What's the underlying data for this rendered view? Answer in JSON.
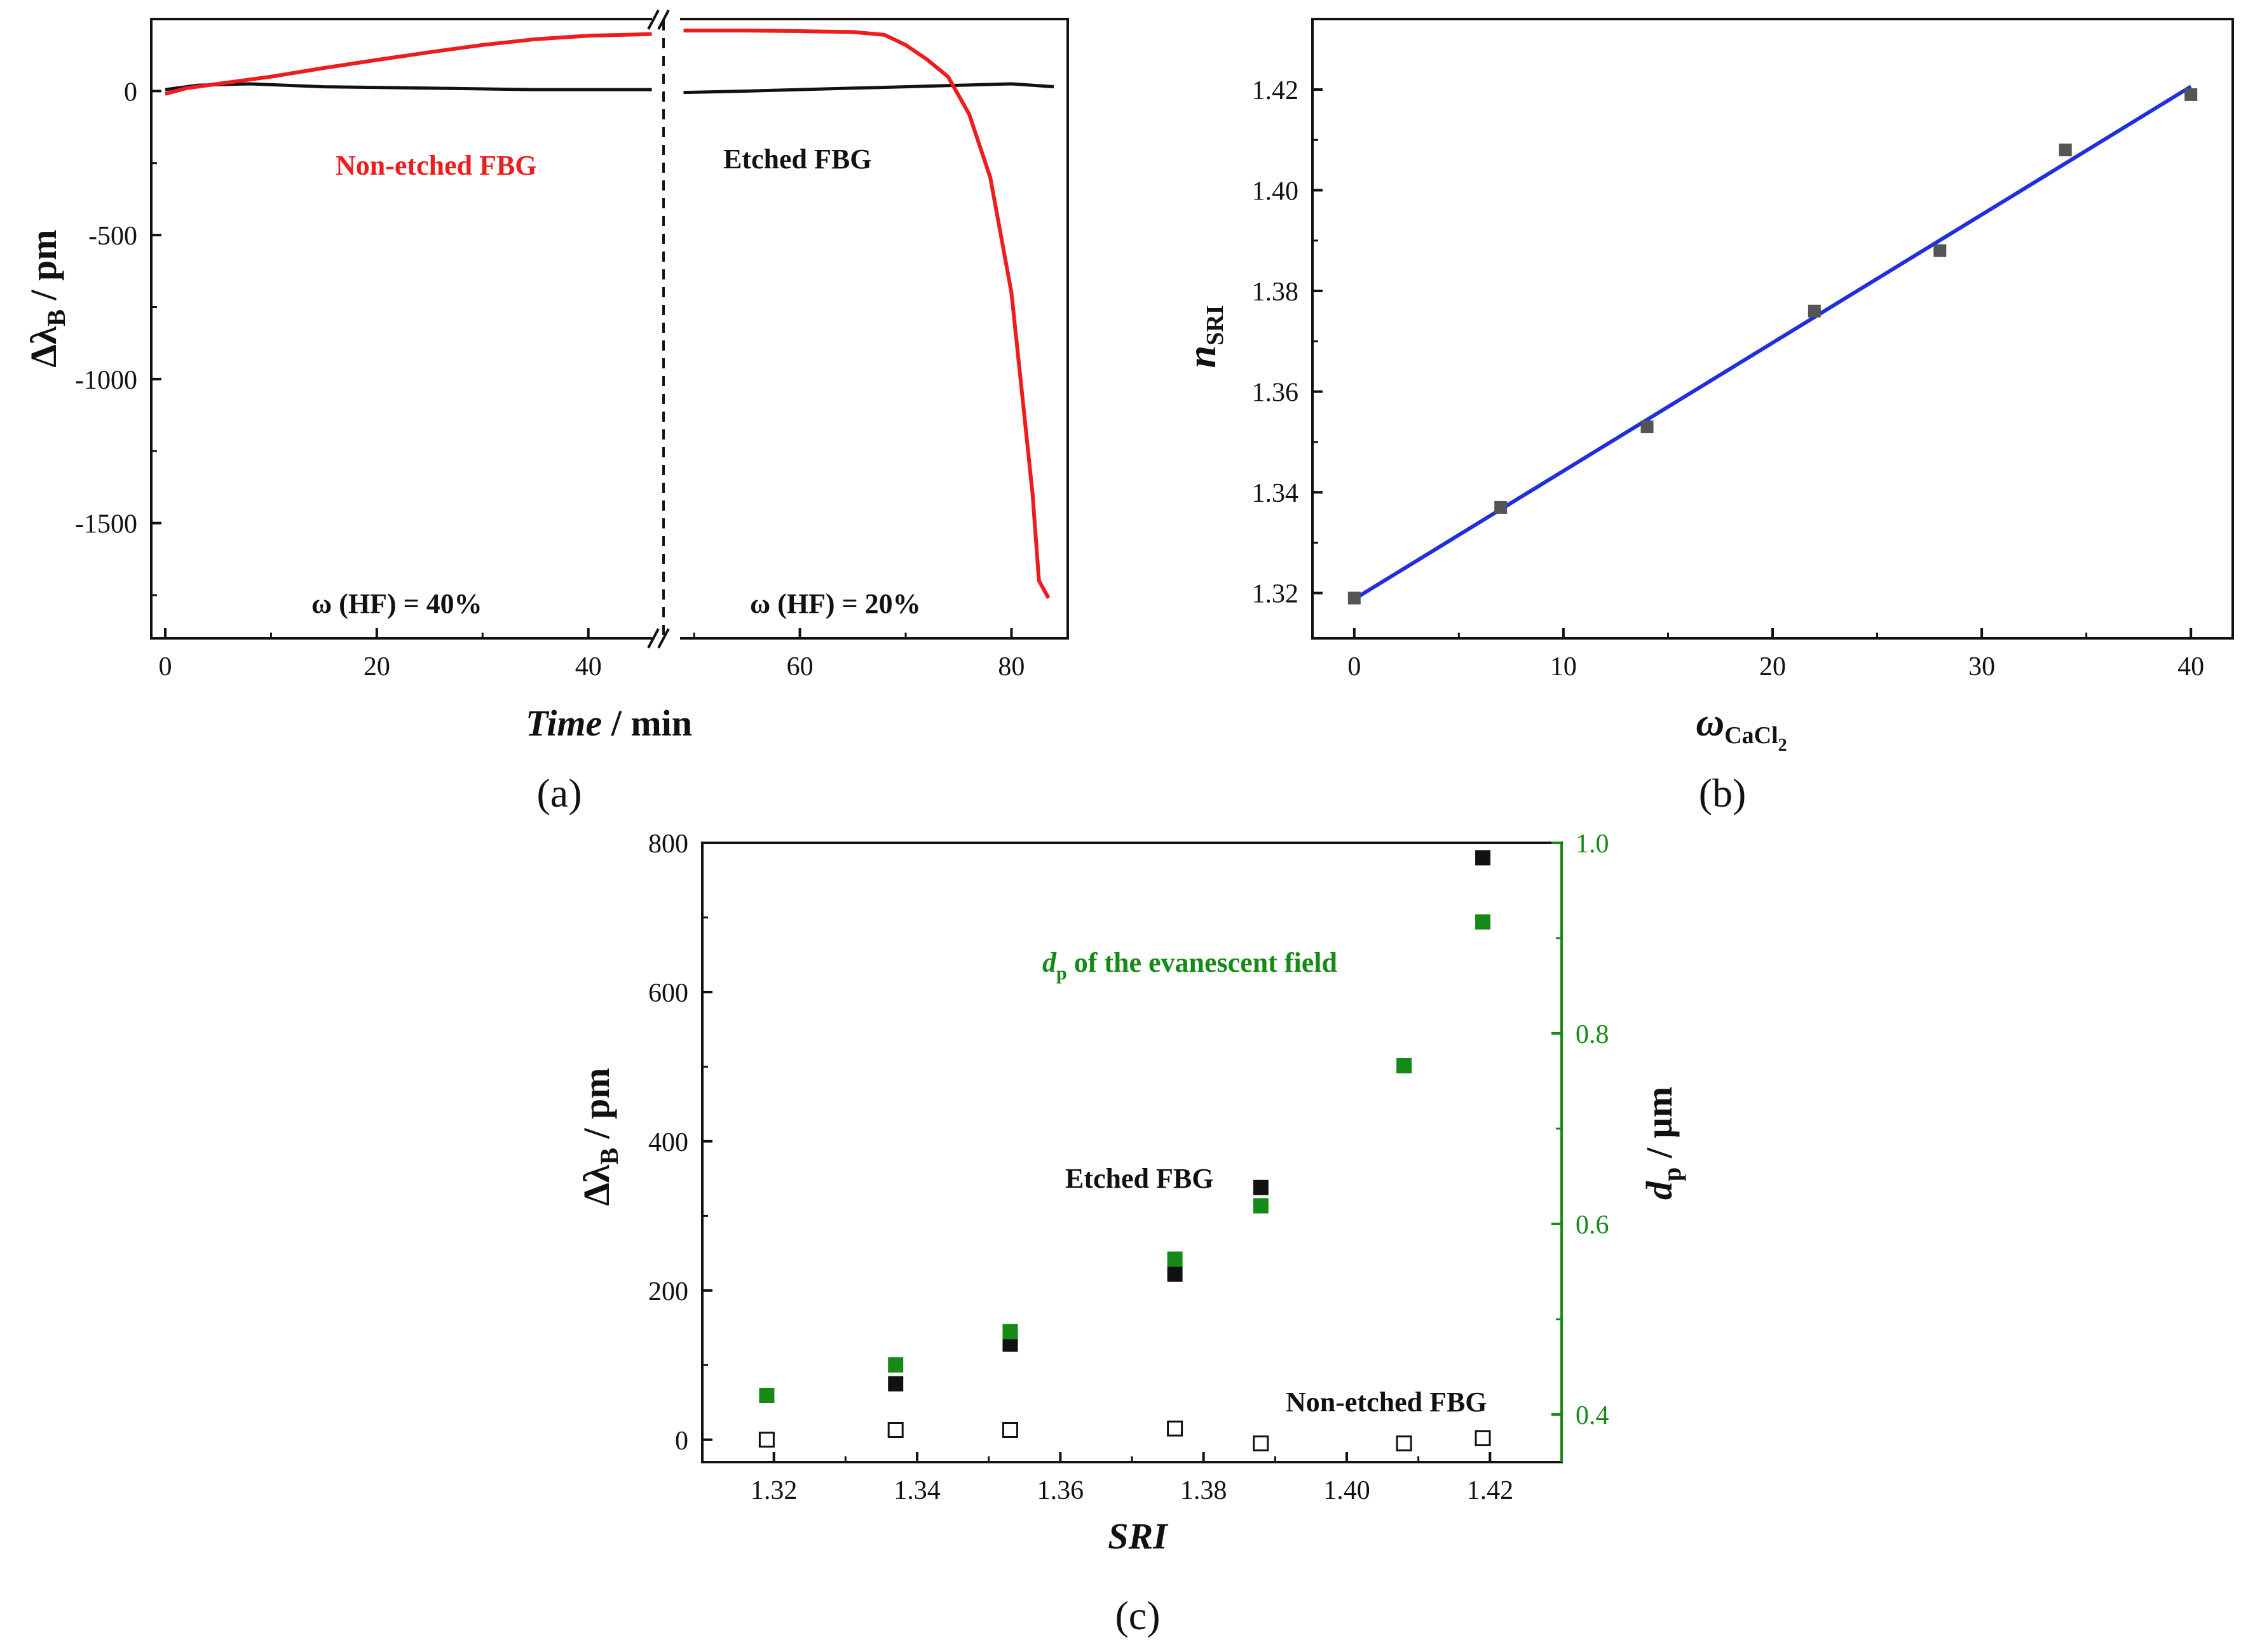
{
  "panels": {
    "a": "(a)",
    "b": "(b)",
    "c": "(c)"
  },
  "colors": {
    "red": "#ee1c1c",
    "black": "#111111",
    "blue": "#1f2fe0",
    "green": "#168a16",
    "gray": "#555555"
  },
  "chart_data": [
    {
      "id": "a",
      "type": "line",
      "title": "",
      "xlabel_italic": "Time",
      "xlabel_unit": " / min",
      "ylabel": "Δλ / pm",
      "ylabel_main": "Δλ",
      "ylabel_sub": "B",
      "ylabel_unit": " / pm",
      "xlim": [
        0,
        84
      ],
      "ylim": [
        -1900,
        250
      ],
      "xticks": [
        0,
        20,
        40,
        60,
        80
      ],
      "yticks": [
        0,
        -500,
        -1000,
        -1500
      ],
      "axis_break_at_min": 46.5,
      "annotations": {
        "non_etched": "Non-etched FBG",
        "etched": "Etched FBG",
        "hf40": "ω (HF) = 40%",
        "hf20": "ω (HF) = 20%"
      },
      "series": [
        {
          "name": "Non-etched FBG",
          "color": "red",
          "points": [
            [
              0,
              -10
            ],
            [
              2,
              10
            ],
            [
              5,
              25
            ],
            [
              10,
              50
            ],
            [
              15,
              80
            ],
            [
              20,
              108
            ],
            [
              25,
              135
            ],
            [
              30,
              160
            ],
            [
              35,
              180
            ],
            [
              40,
              192
            ],
            [
              46,
              198
            ],
            [
              49,
              210
            ],
            [
              55,
              210
            ],
            [
              60,
              208
            ],
            [
              65,
              205
            ],
            [
              68,
              195
            ],
            [
              70,
              160
            ],
            [
              72,
              110
            ],
            [
              74,
              50
            ],
            [
              76,
              -80
            ],
            [
              78,
              -300
            ],
            [
              80,
              -700
            ],
            [
              81,
              -1050
            ],
            [
              82,
              -1400
            ],
            [
              82.6,
              -1700
            ],
            [
              83.5,
              -1760
            ]
          ]
        },
        {
          "name": "Etched FBG",
          "color": "black",
          "points": [
            [
              0,
              5
            ],
            [
              3,
              20
            ],
            [
              8,
              25
            ],
            [
              15,
              15
            ],
            [
              25,
              10
            ],
            [
              35,
              5
            ],
            [
              46,
              5
            ],
            [
              49,
              -5
            ],
            [
              55,
              0
            ],
            [
              65,
              10
            ],
            [
              70,
              15
            ],
            [
              75,
              20
            ],
            [
              80,
              25
            ],
            [
              82,
              20
            ],
            [
              84,
              15
            ]
          ]
        }
      ]
    },
    {
      "id": "b",
      "type": "scatter",
      "title": "",
      "xlabel": "ω",
      "xlabel_sub": "CaCl",
      "xlabel_sub2": "2",
      "ylabel": "n",
      "ylabel_sub": "SRI",
      "xlim": [
        -2,
        42
      ],
      "ylim": [
        1.311,
        1.434
      ],
      "xticks": [
        0,
        10,
        20,
        30,
        40
      ],
      "yticks": [
        1.32,
        1.34,
        1.36,
        1.38,
        1.4,
        1.42
      ],
      "ytick_labels": [
        "1.32",
        "1.34",
        "1.36",
        "1.38",
        "1.40",
        "1.42"
      ],
      "points": {
        "x": [
          0,
          7,
          14,
          22,
          28,
          34,
          40
        ],
        "y": [
          1.319,
          1.337,
          1.353,
          1.376,
          1.388,
          1.408,
          1.419
        ]
      },
      "fit": {
        "x": [
          0,
          40
        ],
        "y": [
          1.3188,
          1.4206
        ]
      }
    },
    {
      "id": "c",
      "type": "scatter",
      "title": "",
      "xlabel": "SRI",
      "ylabel": "Δλ / pm",
      "ylabel_main": "Δλ",
      "ylabel_sub": "B",
      "ylabel_unit": " / pm",
      "ylabel_right": "d / µm",
      "ylabel_right_main": "d",
      "ylabel_right_sub": "p",
      "ylabel_right_unit": " / µm",
      "xlim": [
        1.31,
        1.43
      ],
      "ylim": [
        -30,
        800
      ],
      "y2lim": [
        0.35,
        1.0
      ],
      "xticks": [
        1.32,
        1.34,
        1.36,
        1.38,
        1.4,
        1.42
      ],
      "xtick_labels": [
        "1.32",
        "1.34",
        "1.36",
        "1.38",
        "1.40",
        "1.42"
      ],
      "yticks": [
        0,
        200,
        400,
        600,
        800
      ],
      "y2ticks": [
        0.4,
        0.6,
        0.8,
        1.0
      ],
      "y2tick_labels": [
        "0.4",
        "0.6",
        "0.8",
        "1.0"
      ],
      "annotations": {
        "dp_d": "d",
        "dp_sub": "p",
        "dp_rest": " of the evanescent field",
        "etched": "Etched FBG",
        "non_etched": "Non-etched FBG"
      },
      "series": [
        {
          "name": "Etched FBG",
          "axis": "left",
          "marker": "filled",
          "color": "black",
          "x": [
            1.337,
            1.353,
            1.376,
            1.388,
            1.419
          ],
          "y": [
            75,
            128,
            222,
            338,
            780
          ]
        },
        {
          "name": "Non-etched FBG",
          "axis": "left",
          "marker": "open",
          "color": "black",
          "x": [
            1.319,
            1.337,
            1.353,
            1.376,
            1.388,
            1.408,
            1.419
          ],
          "y": [
            0,
            13,
            13,
            15,
            -5,
            -5,
            2
          ]
        },
        {
          "name": "dp of the evanescent field",
          "axis": "right",
          "marker": "filled",
          "color": "green",
          "x": [
            1.319,
            1.337,
            1.353,
            1.376,
            1.388,
            1.408,
            1.419
          ],
          "y": [
            0.42,
            0.452,
            0.487,
            0.563,
            0.619,
            0.766,
            0.917
          ]
        }
      ]
    }
  ]
}
